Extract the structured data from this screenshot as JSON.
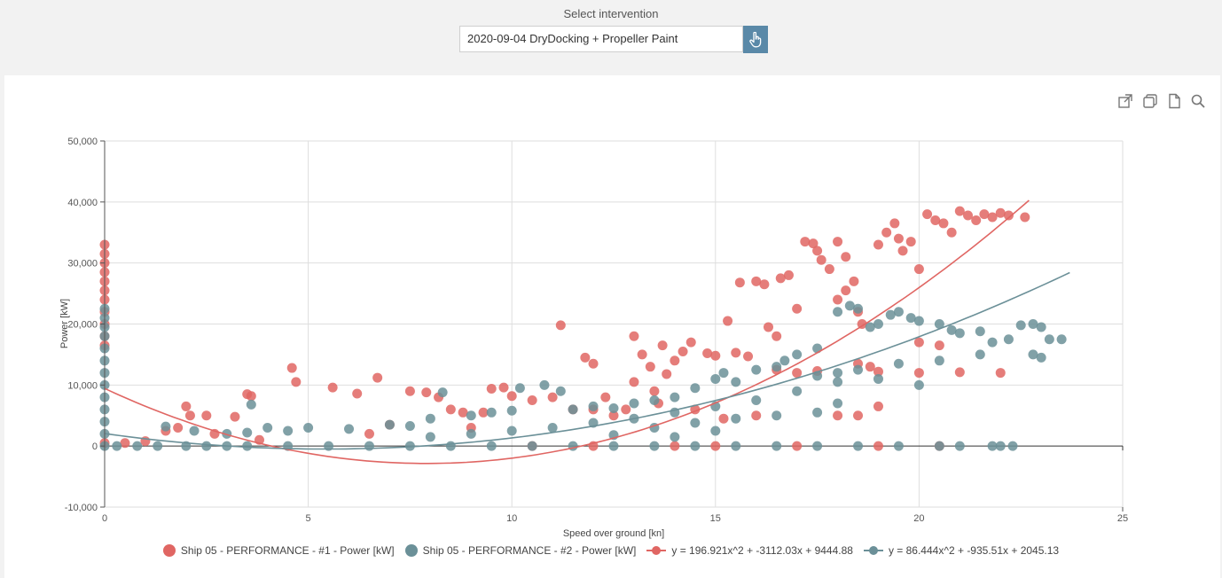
{
  "selector": {
    "label": "Select intervention",
    "value": "2020-09-04 DryDocking + Propeller Paint",
    "button_icon": "hand-pointer-icon"
  },
  "toolbar": {
    "icons": [
      "external-link-icon",
      "copy-icon",
      "document-icon",
      "search-icon"
    ]
  },
  "colors": {
    "series1": "#e06663",
    "series2": "#6b9098",
    "button": "#5a89a8"
  },
  "chart_data": {
    "type": "scatter",
    "xlabel": "Speed over ground [kn]",
    "ylabel": "Power [kW]",
    "xlim": [
      0,
      25
    ],
    "ylim": [
      -10000,
      50000
    ],
    "xticks": [
      "0",
      "5",
      "10",
      "15",
      "20",
      "25"
    ],
    "yticks": [
      "-10,000",
      "0",
      "10,000",
      "20,000",
      "30,000",
      "40,000",
      "50,000"
    ],
    "grid": true,
    "legend_position": "bottom",
    "series": [
      {
        "name": "Ship 05 - PERFORMANCE - #1 - Power [kW]",
        "color": "#e06663",
        "points": [
          [
            0,
            33000
          ],
          [
            0,
            31500
          ],
          [
            0,
            30000
          ],
          [
            0,
            28500
          ],
          [
            0,
            27000
          ],
          [
            0,
            25500
          ],
          [
            0,
            24000
          ],
          [
            0,
            22000
          ],
          [
            0,
            20000
          ],
          [
            0,
            18000
          ],
          [
            0,
            16500
          ],
          [
            0,
            500
          ],
          [
            0.5,
            500
          ],
          [
            1.0,
            800
          ],
          [
            1.5,
            2500
          ],
          [
            1.8,
            3000
          ],
          [
            2.0,
            6500
          ],
          [
            2.1,
            5000
          ],
          [
            2.5,
            5000
          ],
          [
            2.7,
            2000
          ],
          [
            3.2,
            4800
          ],
          [
            3.6,
            8200
          ],
          [
            3.5,
            8500
          ],
          [
            3.8,
            1000
          ],
          [
            4.6,
            12800
          ],
          [
            4.7,
            10500
          ],
          [
            5.6,
            9600
          ],
          [
            6.2,
            8600
          ],
          [
            6.7,
            11200
          ],
          [
            6.5,
            2000
          ],
          [
            7.0,
            3500
          ],
          [
            7.5,
            9000
          ],
          [
            7.9,
            8800
          ],
          [
            8.2,
            8000
          ],
          [
            8.5,
            6000
          ],
          [
            8.8,
            5500
          ],
          [
            9.0,
            3000
          ],
          [
            9.3,
            5500
          ],
          [
            9.5,
            9400
          ],
          [
            9.8,
            9600
          ],
          [
            10.0,
            8200
          ],
          [
            10.5,
            7500
          ],
          [
            11.0,
            8000
          ],
          [
            11.2,
            19800
          ],
          [
            11.5,
            6000
          ],
          [
            11.8,
            14500
          ],
          [
            12.0,
            13500
          ],
          [
            12.3,
            8000
          ],
          [
            12.5,
            5000
          ],
          [
            12.8,
            6000
          ],
          [
            13.0,
            18000
          ],
          [
            13.2,
            15000
          ],
          [
            13.4,
            13000
          ],
          [
            13.5,
            9000
          ],
          [
            13.6,
            7000
          ],
          [
            13.7,
            16500
          ],
          [
            13.8,
            11800
          ],
          [
            14.0,
            14000
          ],
          [
            14.2,
            15500
          ],
          [
            14.4,
            17000
          ],
          [
            14.5,
            6000
          ],
          [
            14.8,
            15200
          ],
          [
            15.0,
            14800
          ],
          [
            15.2,
            4500
          ],
          [
            15.3,
            20500
          ],
          [
            15.5,
            15300
          ],
          [
            15.8,
            14700
          ],
          [
            15.6,
            26800
          ],
          [
            16.0,
            27000
          ],
          [
            16.2,
            26500
          ],
          [
            16.3,
            19500
          ],
          [
            16.5,
            18000
          ],
          [
            16.6,
            27500
          ],
          [
            16.8,
            28000
          ],
          [
            17.0,
            22500
          ],
          [
            17.2,
            33500
          ],
          [
            17.4,
            33200
          ],
          [
            17.5,
            32000
          ],
          [
            17.6,
            30500
          ],
          [
            17.8,
            29000
          ],
          [
            18.0,
            33500
          ],
          [
            18.2,
            31000
          ],
          [
            18.0,
            24000
          ],
          [
            18.2,
            25500
          ],
          [
            18.4,
            27000
          ],
          [
            18.5,
            22000
          ],
          [
            18.6,
            20000
          ],
          [
            18.5,
            13500
          ],
          [
            18.8,
            13000
          ],
          [
            19.0,
            33000
          ],
          [
            19.2,
            35000
          ],
          [
            19.4,
            36500
          ],
          [
            19.5,
            34000
          ],
          [
            19.6,
            32000
          ],
          [
            19.8,
            33500
          ],
          [
            20.0,
            29000
          ],
          [
            20.2,
            38000
          ],
          [
            20.4,
            37000
          ],
          [
            20.6,
            36500
          ],
          [
            20.8,
            35000
          ],
          [
            21.0,
            38500
          ],
          [
            21.2,
            37800
          ],
          [
            21.4,
            37000
          ],
          [
            21.6,
            38000
          ],
          [
            21.8,
            37500
          ],
          [
            22.0,
            38200
          ],
          [
            22.2,
            37800
          ],
          [
            22.6,
            37500
          ],
          [
            16.5,
            12500
          ],
          [
            17.0,
            12000
          ],
          [
            17.5,
            12300
          ],
          [
            19.0,
            12200
          ],
          [
            20.0,
            12000
          ],
          [
            21.0,
            12100
          ],
          [
            22.0,
            12000
          ],
          [
            20.0,
            17000
          ],
          [
            20.5,
            16500
          ],
          [
            18.0,
            5000
          ],
          [
            18.5,
            5000
          ],
          [
            19.0,
            6500
          ],
          [
            10.5,
            0
          ],
          [
            12.0,
            0
          ],
          [
            14.0,
            0
          ],
          [
            15.0,
            0
          ],
          [
            17.0,
            0
          ],
          [
            19.0,
            0
          ],
          [
            20.5,
            0
          ],
          [
            13.0,
            10500
          ],
          [
            12.0,
            6000
          ],
          [
            16.0,
            5000
          ]
        ]
      },
      {
        "name": "Ship 05 - PERFORMANCE - #2 - Power [kW]",
        "color": "#6b9098",
        "points": [
          [
            0,
            22500
          ],
          [
            0,
            21000
          ],
          [
            0,
            19500
          ],
          [
            0,
            18000
          ],
          [
            0,
            16000
          ],
          [
            0,
            14000
          ],
          [
            0,
            12000
          ],
          [
            0,
            10000
          ],
          [
            0,
            8000
          ],
          [
            0,
            6000
          ],
          [
            0,
            4000
          ],
          [
            0,
            2000
          ],
          [
            0,
            0
          ],
          [
            0.3,
            0
          ],
          [
            0.8,
            0
          ],
          [
            1.3,
            0
          ],
          [
            2.0,
            0
          ],
          [
            2.5,
            0
          ],
          [
            3.0,
            0
          ],
          [
            3.5,
            0
          ],
          [
            4.5,
            0
          ],
          [
            5.5,
            0
          ],
          [
            6.5,
            0
          ],
          [
            7.5,
            0
          ],
          [
            8.5,
            0
          ],
          [
            9.5,
            0
          ],
          [
            10.5,
            0
          ],
          [
            11.5,
            0
          ],
          [
            12.5,
            0
          ],
          [
            13.5,
            0
          ],
          [
            14.5,
            0
          ],
          [
            15.5,
            0
          ],
          [
            16.5,
            0
          ],
          [
            17.5,
            0
          ],
          [
            18.5,
            0
          ],
          [
            19.5,
            0
          ],
          [
            20.5,
            0
          ],
          [
            21.0,
            0
          ],
          [
            21.8,
            0
          ],
          [
            22.0,
            0
          ],
          [
            22.3,
            0
          ],
          [
            1.5,
            3200
          ],
          [
            2.2,
            2500
          ],
          [
            3.0,
            2000
          ],
          [
            3.5,
            2200
          ],
          [
            3.6,
            6800
          ],
          [
            4.0,
            3000
          ],
          [
            4.5,
            2500
          ],
          [
            5.0,
            3000
          ],
          [
            6.0,
            2800
          ],
          [
            7.0,
            3500
          ],
          [
            7.5,
            3300
          ],
          [
            8.0,
            4500
          ],
          [
            8.3,
            8800
          ],
          [
            9.0,
            5000
          ],
          [
            9.5,
            5500
          ],
          [
            10.0,
            5800
          ],
          [
            10.2,
            9500
          ],
          [
            10.8,
            10000
          ],
          [
            11.2,
            9000
          ],
          [
            11.5,
            6000
          ],
          [
            12.0,
            6500
          ],
          [
            12.5,
            6200
          ],
          [
            13.0,
            7000
          ],
          [
            13.5,
            7500
          ],
          [
            14.0,
            8000
          ],
          [
            14.5,
            9500
          ],
          [
            15.0,
            11000
          ],
          [
            15.2,
            12000
          ],
          [
            15.5,
            10500
          ],
          [
            16.0,
            12500
          ],
          [
            16.5,
            13000
          ],
          [
            16.7,
            14000
          ],
          [
            17.0,
            15000
          ],
          [
            17.5,
            16000
          ],
          [
            17.5,
            11500
          ],
          [
            18.0,
            12000
          ],
          [
            18.0,
            22000
          ],
          [
            18.3,
            23000
          ],
          [
            18.5,
            22500
          ],
          [
            18.8,
            19500
          ],
          [
            19.0,
            20000
          ],
          [
            19.3,
            21500
          ],
          [
            19.5,
            22000
          ],
          [
            19.8,
            21000
          ],
          [
            20.0,
            20500
          ],
          [
            20.5,
            20000
          ],
          [
            20.8,
            19000
          ],
          [
            21.0,
            18500
          ],
          [
            21.5,
            18800
          ],
          [
            21.8,
            17000
          ],
          [
            22.2,
            17500
          ],
          [
            22.5,
            19800
          ],
          [
            22.8,
            20000
          ],
          [
            23.0,
            19500
          ],
          [
            23.2,
            17500
          ],
          [
            23.5,
            17500
          ],
          [
            22.8,
            15000
          ],
          [
            23.0,
            14500
          ],
          [
            21.5,
            15000
          ],
          [
            20.5,
            14000
          ],
          [
            19.5,
            13500
          ],
          [
            18.5,
            12500
          ],
          [
            17.0,
            9000
          ],
          [
            16.0,
            7500
          ],
          [
            15.0,
            6500
          ],
          [
            14.0,
            5500
          ],
          [
            13.0,
            4500
          ],
          [
            12.0,
            3800
          ],
          [
            11.0,
            3000
          ],
          [
            10.0,
            2500
          ],
          [
            9.0,
            2000
          ],
          [
            8.0,
            1500
          ],
          [
            18.0,
            7000
          ],
          [
            17.5,
            5500
          ],
          [
            16.5,
            5000
          ],
          [
            15.5,
            4500
          ],
          [
            14.5,
            3800
          ],
          [
            13.5,
            3000
          ],
          [
            20.0,
            10000
          ],
          [
            19.0,
            11000
          ],
          [
            18.0,
            10500
          ],
          [
            15.0,
            2500
          ],
          [
            14.0,
            1500
          ],
          [
            12.5,
            1800
          ]
        ]
      },
      {
        "name": "y = 196.921x^2 + -3112.03x + 9444.88",
        "color": "#e06663",
        "type": "line",
        "fit": {
          "a": 196.921,
          "b": -3112.03,
          "c": 9444.88,
          "xrange": [
            0,
            22.7
          ]
        }
      },
      {
        "name": "y = 86.444x^2 + -935.51x + 2045.13",
        "color": "#6b9098",
        "type": "line",
        "fit": {
          "a": 86.444,
          "b": -935.51,
          "c": 2045.13,
          "xrange": [
            0,
            23.7
          ]
        }
      }
    ]
  }
}
